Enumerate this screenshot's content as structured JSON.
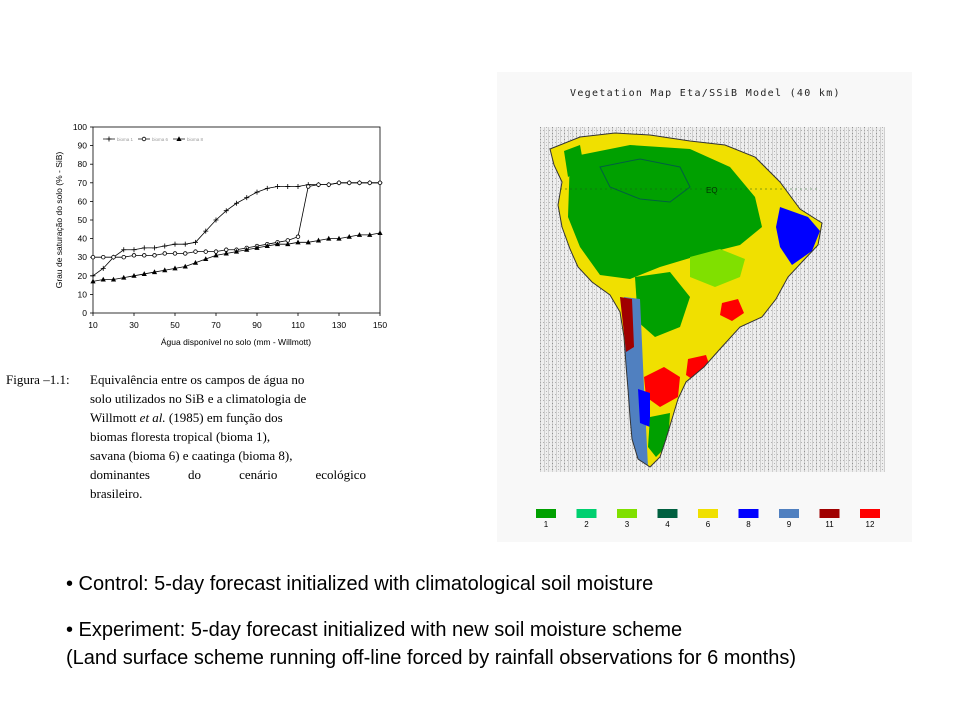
{
  "chart_data": {
    "type": "line",
    "title": "",
    "xlabel": "Água disponível no solo (mm - Willmott)",
    "ylabel": "Grau de saturação do solo (% - SiB)",
    "xlim": [
      10,
      150
    ],
    "ylim": [
      0,
      100
    ],
    "xticks": [
      10,
      30,
      50,
      70,
      90,
      110,
      130,
      150
    ],
    "yticks": [
      0,
      10,
      20,
      30,
      40,
      50,
      60,
      70,
      80,
      90,
      100
    ],
    "legend_position": "top-left",
    "series": [
      {
        "name": "bioma 1",
        "marker": "plus",
        "x": [
          10,
          15,
          20,
          25,
          30,
          35,
          40,
          45,
          50,
          55,
          60,
          65,
          70,
          75,
          80,
          85,
          90,
          95,
          100,
          105,
          110,
          115,
          120,
          125,
          130,
          135,
          140,
          145,
          150
        ],
        "y": [
          20,
          24,
          30,
          34,
          34,
          35,
          35,
          36,
          37,
          37,
          38,
          44,
          50,
          55,
          59,
          62,
          65,
          67,
          68,
          68,
          68,
          69,
          69,
          69,
          70,
          70,
          70,
          70,
          70
        ]
      },
      {
        "name": "bioma 6",
        "marker": "circle",
        "x": [
          10,
          15,
          20,
          25,
          30,
          35,
          40,
          45,
          50,
          55,
          60,
          65,
          70,
          75,
          80,
          85,
          90,
          95,
          100,
          105,
          110,
          115,
          120,
          125,
          130,
          135,
          140,
          145,
          150
        ],
        "y": [
          30,
          30,
          30,
          30,
          31,
          31,
          31,
          32,
          32,
          32,
          33,
          33,
          33,
          34,
          34,
          35,
          36,
          37,
          38,
          39,
          41,
          68,
          69,
          69,
          70,
          70,
          70,
          70,
          70
        ]
      },
      {
        "name": "bioma 8",
        "marker": "triangle",
        "x": [
          10,
          15,
          20,
          25,
          30,
          35,
          40,
          45,
          50,
          55,
          60,
          65,
          70,
          75,
          80,
          85,
          90,
          95,
          100,
          105,
          110,
          115,
          120,
          125,
          130,
          135,
          140,
          145,
          150
        ],
        "y": [
          17,
          18,
          18,
          19,
          20,
          21,
          22,
          23,
          24,
          25,
          27,
          29,
          31,
          32,
          33,
          34,
          35,
          36,
          37,
          37,
          38,
          38,
          39,
          40,
          40,
          41,
          42,
          42,
          43
        ]
      }
    ]
  },
  "caption": {
    "label": "Figura –1.1:",
    "line1": "Equivalência entre os campos de água no",
    "line2": "solo utilizados no SiB e a climatologia de",
    "line3_pre": "Willmott ",
    "line3_italic": "et al.",
    "line3_post": " (1985) em função dos",
    "line4": "biomas floresta tropical (bioma 1),",
    "line5": "savana (bioma 6) e caatinga (bioma 8),",
    "line6": "dominantes do cenário ecológico",
    "line7": "brasileiro."
  },
  "map": {
    "title": "Vegetation Map Eta/SSiB Model (40 km)",
    "eq_label": "EQ",
    "legend": [
      {
        "label": "1",
        "color": "#00a000"
      },
      {
        "label": "2",
        "color": "#00d070"
      },
      {
        "label": "3",
        "color": "#80e000"
      },
      {
        "label": "4",
        "color": "#006040"
      },
      {
        "label": "6",
        "color": "#f0e000"
      },
      {
        "label": "8",
        "color": "#0000ff"
      },
      {
        "label": "9",
        "color": "#5080c0"
      },
      {
        "label": "11",
        "color": "#a00000"
      },
      {
        "label": "12",
        "color": "#ff0000"
      }
    ]
  },
  "bullets": {
    "control": "• Control: 5-day forecast initialized with climatological soil moisture",
    "experiment": "• Experiment: 5-day forecast initialized with new soil moisture scheme",
    "experiment_note": "(Land surface scheme running off-line forced by rainfall observations for 6 months)"
  }
}
